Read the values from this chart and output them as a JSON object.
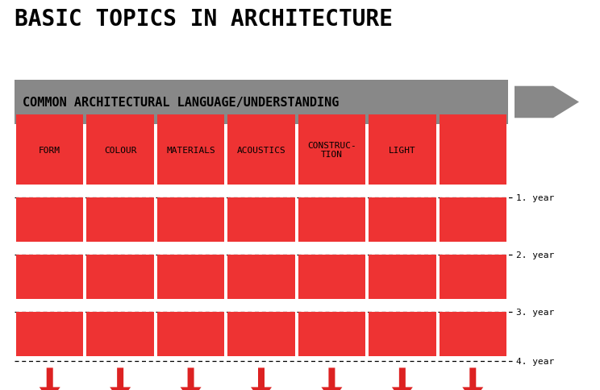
{
  "title": "BASIC TOPICS IN ARCHITECTURE",
  "title_fontsize": 20,
  "background_color": "#ffffff",
  "gray_bar_color": "#888888",
  "gray_bar_label": "COMMON ARCHITECTURAL LANGUAGE/UNDERSTANDING",
  "gray_bar_label_fontsize": 11,
  "red_color": "#ee3333",
  "topics": [
    "FORM",
    "COLOUR",
    "MATERIALS",
    "ACOUSTICS",
    "CONSTRUC-\nTION",
    "LIGHT",
    ""
  ],
  "topic_fontsize": 8,
  "year_labels": [
    "1. year",
    "2. year",
    "3. year",
    "4. year"
  ],
  "year_label_fontsize": 8,
  "arrow_color": "#dd2222",
  "gray_arrow_color": "#888888",
  "n_cols": 7
}
